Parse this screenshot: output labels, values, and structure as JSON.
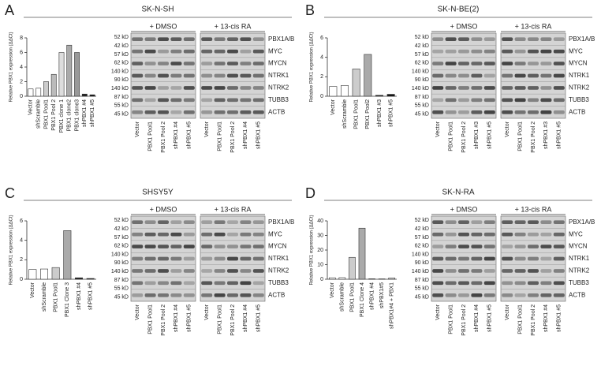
{
  "panels": [
    {
      "label": "A",
      "title": "SK-N-SH",
      "treatments": [
        "+ DMSO",
        "+ 13-cis RA"
      ],
      "kd": [
        "52 kD",
        "42 kD",
        "57 kD",
        "62 kD",
        "140 kD",
        "90 kD",
        "140 kD",
        "87 kD",
        "55 kD",
        "45 kD"
      ],
      "proteins": [
        "PBX1A/B",
        "MYC",
        "MYCN",
        "NTRK1",
        "NTRK2",
        "TUBB3",
        "ACTB"
      ],
      "lanes": [
        "Vector",
        "PBX1 Pool1",
        "PBX1 Pool 2",
        "shPBX1 #4",
        "shPBX1 #5"
      ]
    },
    {
      "label": "B",
      "title": "SK-N-BE(2)",
      "treatments": [
        "+ DMSO",
        "+ 13-cis RA"
      ],
      "kd": [
        "52 kD",
        "42 kD",
        "57 kD",
        "62 kD",
        "140 kD",
        "90 kD",
        "140 kD",
        "87 kD",
        "55 kD",
        "45 kD"
      ],
      "proteins": [
        "PBX1A/B",
        "MYC",
        "MYCN",
        "NTRK1",
        "NTRK2",
        "TUBB3",
        "ACTB"
      ],
      "lanes": [
        "Vector",
        "PBX1 Pool1",
        "PBX1 Pool 2",
        "shPBX1 #3",
        "shPBX1 #5"
      ]
    },
    {
      "label": "C",
      "title": "SHSY5Y",
      "treatments": [
        "+ DMSO",
        "+ 13-cis RA"
      ],
      "kd": [
        "52 kD",
        "42 kD",
        "57 kD",
        "62 kD",
        "140 kD",
        "90 kD",
        "140 kD",
        "87 kD",
        "55 kD",
        "45 kD"
      ],
      "proteins": [
        "PBX1A/B",
        "MYC",
        "MYCN",
        "NTRK1",
        "NTRK2",
        "TUBB3",
        "ACTB"
      ],
      "lanes": [
        "Vector",
        "PBX1 Pool1",
        "PBX1 Pool 2",
        "shPBX1 #4",
        "shPBX1 #5"
      ]
    },
    {
      "label": "D",
      "title": "SK-N-RA",
      "treatments": [
        "+ DMSO",
        "+ 13-cis RA"
      ],
      "kd": [
        "52 kD",
        "42 kD",
        "57 kD",
        "62 kD",
        "140 kD",
        "90 kD",
        "140 kD",
        "87 kD",
        "55 kD",
        "45 kD"
      ],
      "proteins": [
        "PBX1A/B",
        "MYC",
        "MYCN",
        "NTRK1",
        "NTRK2",
        "TUBB3",
        "ACTB"
      ],
      "lanes": [
        "Vector",
        "PBX1 Pool1",
        "PBX1 Pool 2",
        "shPBX1 #4",
        "shPBX1 #5"
      ]
    }
  ],
  "chart_data": [
    {
      "type": "bar",
      "ylabel": "Relative PBX1 expression (ΔΔCt)",
      "categories": [
        "Vector",
        "shScramble",
        "PBX1 Pool1",
        "PBX1 Pool 2",
        "PBX1 clone 1",
        "PBX1 clone2",
        "PBX1 clone3",
        "shPBX1 #4",
        "shPBX1 #5"
      ],
      "values": [
        1,
        1.1,
        2,
        3,
        6,
        7,
        6,
        0.3,
        0.2
      ],
      "colors": [
        "#ffffff",
        "#ffffff",
        "#cccccc",
        "#bbbbbb",
        "#dddddd",
        "#aaaaaa",
        "#999999",
        "#222222",
        "#111111"
      ],
      "ylim": [
        0,
        8
      ],
      "yticks": [
        0,
        2,
        4,
        6,
        8
      ]
    },
    {
      "type": "bar",
      "ylabel": "Relative PBX1 expression (ΔΔCt)",
      "categories": [
        "Vector",
        "shScramble",
        "PBX1 Pool1",
        "PBX1 Pool2",
        "shPBX1 #3",
        "shPBX1 #5"
      ],
      "values": [
        1,
        1.1,
        2.8,
        4.3,
        0.1,
        0.2
      ],
      "colors": [
        "#ffffff",
        "#ffffff",
        "#cccccc",
        "#aaaaaa",
        "#222222",
        "#111111"
      ],
      "ylim": [
        0,
        6
      ],
      "yticks": [
        0,
        2,
        4,
        6
      ]
    },
    {
      "type": "bar",
      "ylabel": "Relative PBX1 expression (ΔΔCt)",
      "categories": [
        "Vector",
        "shScramble",
        "PBX1 Pool1",
        "PBX1 Clone 3",
        "shPBX1 #4",
        "shPBX1 #5"
      ],
      "values": [
        1,
        1.05,
        1.2,
        5,
        0.15,
        0.08
      ],
      "colors": [
        "#ffffff",
        "#ffffff",
        "#cccccc",
        "#aaaaaa",
        "#222222",
        "#111111"
      ],
      "ylim": [
        0,
        6
      ],
      "yticks": [
        0,
        2,
        4,
        6
      ]
    },
    {
      "type": "bar",
      "ylabel": "Relative PBX1 expression (ΔΔCt)",
      "categories": [
        "Vector",
        "shScramble",
        "PBX1 Pool1",
        "PBX1 Clone 4",
        "shPBX1 #4",
        "shPBX1#5",
        "shPBX1#4 + PBX1"
      ],
      "values": [
        1,
        1.1,
        15,
        35,
        0.3,
        0.25,
        0.9
      ],
      "colors": [
        "#ffffff",
        "#ffffff",
        "#cccccc",
        "#aaaaaa",
        "#222222",
        "#111111",
        "#dddddd"
      ],
      "ylim": [
        0,
        40
      ],
      "yticks": [
        0,
        10,
        20,
        30,
        40
      ]
    }
  ]
}
